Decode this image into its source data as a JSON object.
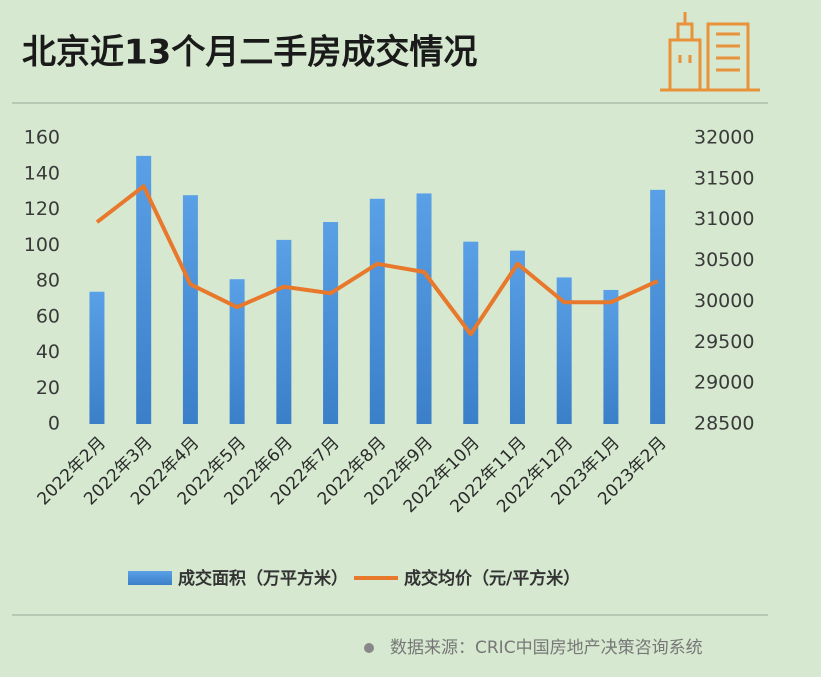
{
  "chart_data": {
    "type": "combo",
    "title": "北京近13个月二手房成交情况",
    "categories": [
      "2022年2月",
      "2022年3月",
      "2022年4月",
      "2022年5月",
      "2022年6月",
      "2022年7月",
      "2022年8月",
      "2022年9月",
      "2022年10月",
      "2022年11月",
      "2022年12月",
      "2023年1月",
      "2023年2月"
    ],
    "series": [
      {
        "name": "成交面积（万平方米）",
        "type": "bar",
        "color": "#4a90d9",
        "values": [
          74,
          150,
          128,
          81,
          103,
          113,
          126,
          129,
          102,
          97,
          82,
          75,
          131
        ]
      },
      {
        "name": "成交均价（元/平方米）",
        "type": "line",
        "axis": "y2",
        "color": "#e8792c",
        "values": [
          30970,
          31410,
          30210,
          29930,
          30180,
          30100,
          30460,
          30360,
          29600,
          30460,
          29990,
          29990,
          30250
        ]
      }
    ],
    "ylim": [
      0,
      160
    ],
    "yticks": [
      0,
      20,
      40,
      60,
      80,
      100,
      120,
      140,
      160
    ],
    "y2lim": [
      28500,
      32000
    ],
    "y2ticks": [
      28500,
      29000,
      29500,
      30000,
      30500,
      31000,
      31500,
      32000
    ],
    "grid": false,
    "legend": "bottom",
    "source": "数据来源：CRIC中国房地产决策咨询系统"
  }
}
